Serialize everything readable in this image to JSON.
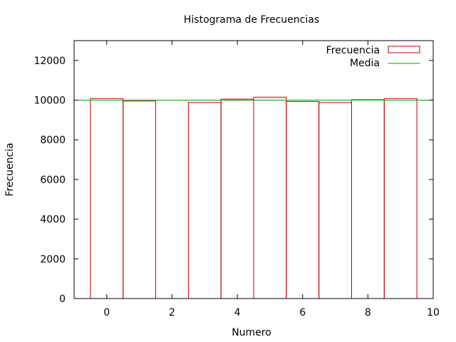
{
  "chart_data": {
    "type": "bar",
    "title": "Histograma de Frecuencias",
    "xlabel": "Numero",
    "ylabel": "Frecuencia",
    "xlim": [
      -1,
      10
    ],
    "ylim": [
      0,
      13000
    ],
    "xticks": [
      0,
      2,
      4,
      6,
      8,
      10
    ],
    "yticks": [
      0,
      2000,
      4000,
      6000,
      8000,
      10000,
      12000
    ],
    "legend_position": "top-right",
    "grid": false,
    "x": [
      0,
      1,
      2,
      3,
      4,
      5,
      6,
      7,
      8,
      9
    ],
    "series": [
      {
        "name": "Frecuencia",
        "kind": "bar",
        "color": "#c00000",
        "values": [
          10080,
          9950,
          0,
          9880,
          10050,
          10150,
          9930,
          9880,
          10020,
          10080
        ]
      },
      {
        "name": "Media",
        "kind": "line",
        "color": "#00a000",
        "value": 10000
      }
    ]
  }
}
